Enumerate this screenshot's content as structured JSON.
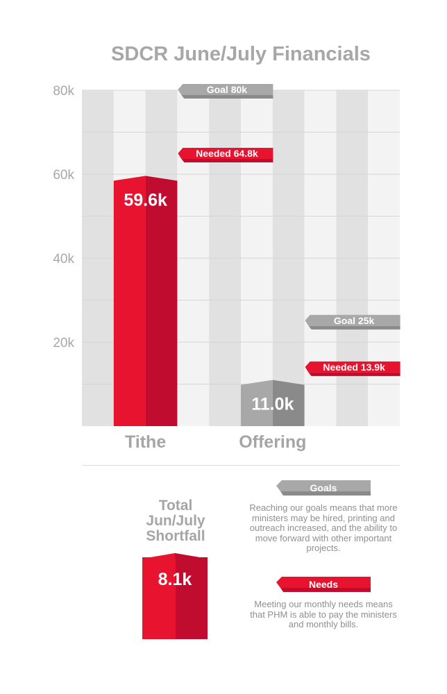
{
  "title": "SDCR June/July Financials",
  "colors": {
    "red_light": "#e8132f",
    "red_dark": "#c00c2e",
    "gray_light": "#a8a8a8",
    "gray_dark": "#8a8a8a",
    "label_gray": "#a7a7a7",
    "column_dark": "#e1e1e1",
    "column_light": "#f3f3f3"
  },
  "chart_data": {
    "type": "bar",
    "title": "SDCR June/July Financials",
    "categories": [
      "Tithe",
      "Offering"
    ],
    "ylim": [
      0,
      80000
    ],
    "yticks": [
      {
        "value": 80000,
        "label": "80k"
      },
      {
        "value": 60000,
        "label": "60k"
      },
      {
        "value": 40000,
        "label": "40k"
      },
      {
        "value": 20000,
        "label": "20k"
      }
    ],
    "grid": true,
    "bars": [
      {
        "category": "Tithe",
        "value": 59600,
        "label": "59.6k",
        "color": "red"
      },
      {
        "category": "Offering",
        "value": 11000,
        "label": "11.0k",
        "color": "gray"
      }
    ],
    "annotations": [
      {
        "category": "Tithe",
        "kind": "goal",
        "value": 80000,
        "label": "Goal 80k"
      },
      {
        "category": "Tithe",
        "kind": "needed",
        "value": 64800,
        "label": "Needed 64.8k"
      },
      {
        "category": "Offering",
        "kind": "goal",
        "value": 25000,
        "label": "Goal 25k"
      },
      {
        "category": "Offering",
        "kind": "needed",
        "value": 13900,
        "label": "Needed 13.9k"
      }
    ]
  },
  "total": {
    "label_lines": [
      "Total",
      "Jun/July",
      "Shortfall"
    ],
    "value": "8.1k"
  },
  "legend": {
    "goals": {
      "label": "Goals",
      "description": "Reaching our goals means that more ministers may be hired, printing and outreach increased, and the ability to move forward with other important projects."
    },
    "needs": {
      "label": "Needs",
      "description": "Meeting our monthly needs means that PHM is able to pay the ministers and monthly bills."
    }
  }
}
